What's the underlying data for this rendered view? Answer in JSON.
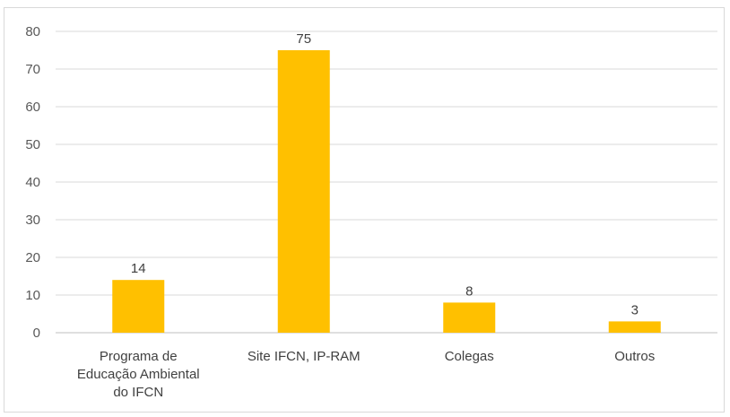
{
  "chart_data": {
    "type": "bar",
    "title": "",
    "xlabel": "",
    "ylabel": "",
    "categories": [
      [
        "Programa de",
        "Educação Ambiental",
        "do IFCN"
      ],
      [
        "Site IFCN, IP-RAM"
      ],
      [
        "Colegas"
      ],
      [
        "Outros"
      ]
    ],
    "values": [
      14,
      75,
      8,
      3
    ],
    "data_labels": [
      "14",
      "75",
      "8",
      "3"
    ],
    "ylim": [
      0,
      80
    ],
    "yticks": [
      0,
      10,
      20,
      30,
      40,
      50,
      60,
      70,
      80
    ],
    "ytick_labels": [
      "0",
      "10",
      "20",
      "30",
      "40",
      "50",
      "60",
      "70",
      "80"
    ],
    "grid": true,
    "legend": "none",
    "colors": {
      "bar": "#FFC000",
      "grid": "#d9d9d9",
      "axis": "#bfbfbf"
    }
  }
}
